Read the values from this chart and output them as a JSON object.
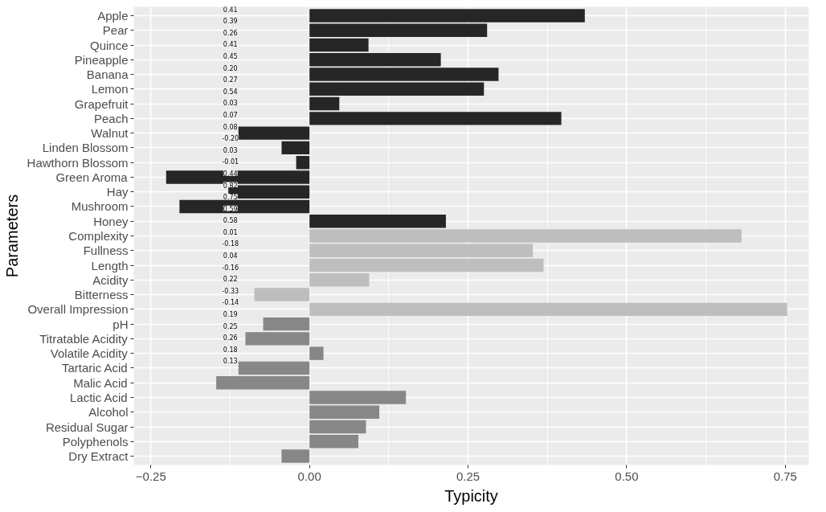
{
  "chart_data": {
    "type": "bar",
    "orientation": "horizontal",
    "xlabel": "Typicity",
    "ylabel": "Parameters",
    "categories": [
      "Apple",
      "Pear",
      "Quince",
      "Pineapple",
      "Banana",
      "Lemon",
      "Grapefruit",
      "Peach",
      "Walnut",
      "Linden Blossom",
      "Hawthorn Blossom",
      "Green Aroma",
      "Hay",
      "Mushroom",
      "Honey",
      "Complexity",
      "Fullness",
      "Length",
      "Acidity",
      "Bitterness",
      "Overall Impression",
      "pH",
      "Titratable Acidity",
      "Volatile Acidity",
      "Tartaric Acid",
      "Malic Acid",
      "Lactic Acid",
      "Alcohol",
      "Residual Sugar",
      "Polyphenols",
      "Dry Extract"
    ],
    "values": [
      0.434,
      0.28,
      0.093,
      0.207,
      0.298,
      0.275,
      0.047,
      0.397,
      -0.112,
      -0.044,
      -0.021,
      -0.226,
      -0.128,
      -0.205,
      0.215,
      0.681,
      0.352,
      0.369,
      0.094,
      -0.087,
      0.753,
      -0.073,
      -0.101,
      0.022,
      -0.112,
      -0.147,
      0.152,
      0.11,
      0.089,
      0.077,
      -0.044
    ],
    "colors": [
      "#262626",
      "#262626",
      "#262626",
      "#262626",
      "#262626",
      "#262626",
      "#262626",
      "#262626",
      "#262626",
      "#262626",
      "#262626",
      "#262626",
      "#262626",
      "#262626",
      "#262626",
      "#bebebe",
      "#bebebe",
      "#bebebe",
      "#bebebe",
      "#bebebe",
      "#bebebe",
      "#878787",
      "#878787",
      "#878787",
      "#878787",
      "#878787",
      "#878787",
      "#878787",
      "#878787",
      "#878787",
      "#878787"
    ],
    "annotations": [
      "0.41",
      "0.39",
      "0.26",
      "0.41",
      "0.45",
      "0.20",
      "0.27",
      "0.54",
      "0.03",
      "0.07",
      "0.08",
      "-0.20",
      "0.03",
      "-0.01",
      "0.44",
      "0.82",
      "0.75",
      "0.59",
      "0.58",
      "0.01",
      "-0.18",
      "0.04",
      "-0.16",
      "0.22",
      "-0.33",
      "-0.14",
      "0.19",
      "0.25",
      "0.26",
      "0.18",
      "0.13"
    ],
    "xlim": [
      -0.277,
      0.787
    ],
    "xticks": [
      -0.25,
      {
        "value": 0,
        "label": "0.00"
      },
      {
        "value": 0.25,
        "label": "0.25"
      },
      {
        "value": 0.5,
        "label": "0.50"
      },
      0.75
    ],
    "grid": true
  }
}
